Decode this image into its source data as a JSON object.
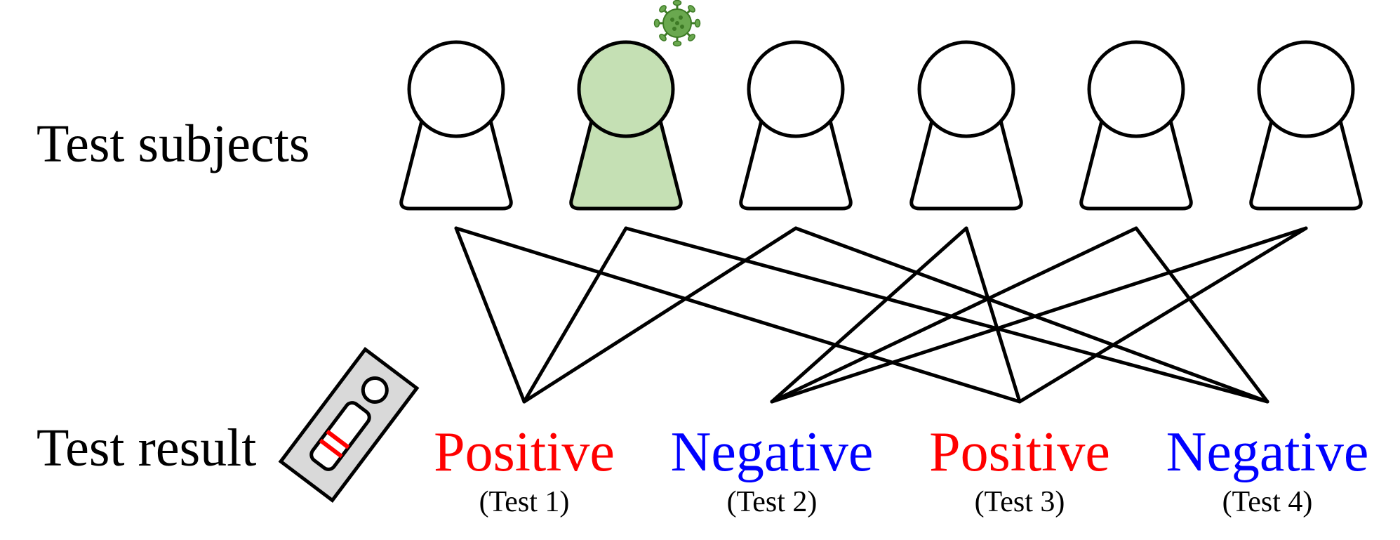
{
  "labels": {
    "subjects": "Test subjects",
    "result": "Test result"
  },
  "colors": {
    "positive": "#ff0000",
    "negative": "#0000ff",
    "infected_fill": "#c5e0b4",
    "normal_fill": "#ffffff",
    "virus": "#6aa84f",
    "test_kit": "#d9d9d9"
  },
  "icons": {
    "virus": "virus-icon",
    "test_kit": "test-kit-icon"
  },
  "subjects": [
    {
      "id": 1,
      "infected": false
    },
    {
      "id": 2,
      "infected": true
    },
    {
      "id": 3,
      "infected": false
    },
    {
      "id": 4,
      "infected": false
    },
    {
      "id": 5,
      "infected": false
    },
    {
      "id": 6,
      "infected": false
    }
  ],
  "tests": [
    {
      "result": "Positive",
      "name": "(Test 1)",
      "positive": true
    },
    {
      "result": "Negative",
      "name": "(Test 2)",
      "positive": false
    },
    {
      "result": "Positive",
      "name": "(Test 3)",
      "positive": true
    },
    {
      "result": "Negative",
      "name": "(Test 4)",
      "positive": false
    }
  ],
  "connections": [
    {
      "subject": 1,
      "test": 1
    },
    {
      "subject": 1,
      "test": 3
    },
    {
      "subject": 2,
      "test": 1
    },
    {
      "subject": 2,
      "test": 4
    },
    {
      "subject": 3,
      "test": 1
    },
    {
      "subject": 3,
      "test": 4
    },
    {
      "subject": 4,
      "test": 2
    },
    {
      "subject": 4,
      "test": 3
    },
    {
      "subject": 5,
      "test": 2
    },
    {
      "subject": 5,
      "test": 4
    },
    {
      "subject": 6,
      "test": 2
    },
    {
      "subject": 6,
      "test": 3
    }
  ]
}
